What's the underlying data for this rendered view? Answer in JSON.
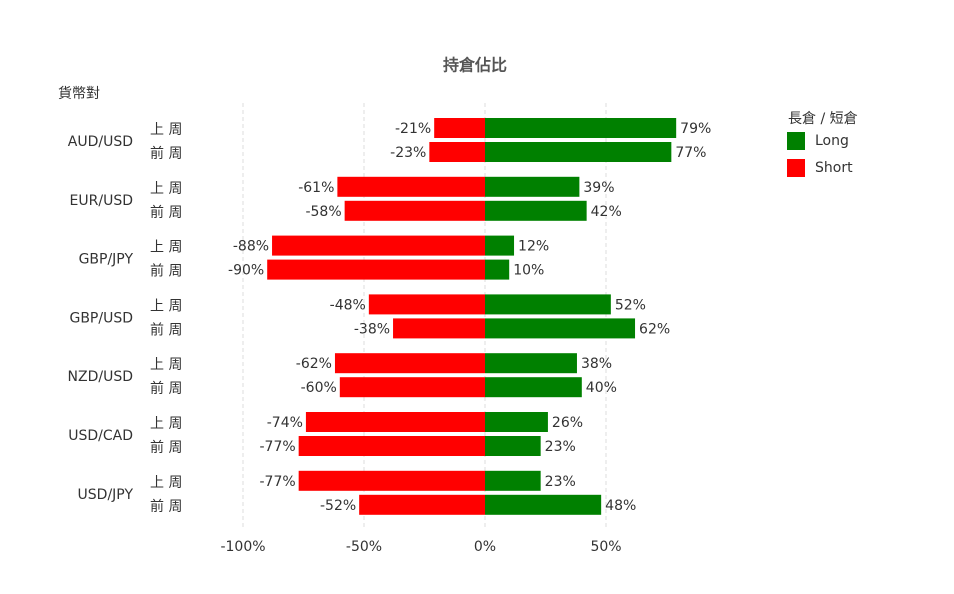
{
  "chart_data": {
    "type": "diverging-bar",
    "title": "持倉佔比",
    "y_label": "貨幣對",
    "legend_title": "長倉 / 短倉",
    "legend": "right",
    "categories": [
      "AUD/USD",
      "EUR/USD",
      "GBP/JPY",
      "GBP/USD",
      "NZD/USD",
      "USD/CAD",
      "USD/JPY"
    ],
    "periods": [
      "上 周",
      "前 周"
    ],
    "series": [
      {
        "name": "Long",
        "color": "#008000",
        "values": [
          [
            79,
            77
          ],
          [
            39,
            42
          ],
          [
            12,
            10
          ],
          [
            52,
            62
          ],
          [
            38,
            40
          ],
          [
            26,
            23
          ],
          [
            23,
            48
          ]
        ],
        "value_labels": [
          [
            "79%",
            "77%"
          ],
          [
            "39%",
            "42%"
          ],
          [
            "12%",
            "10%"
          ],
          [
            "52%",
            "62%"
          ],
          [
            "38%",
            "40%"
          ],
          [
            "26%",
            "23%"
          ],
          [
            "23%",
            "48%"
          ]
        ]
      },
      {
        "name": "Short",
        "color": "#ff0000",
        "values": [
          [
            -21,
            -23
          ],
          [
            -61,
            -58
          ],
          [
            -88,
            -90
          ],
          [
            -48,
            -38
          ],
          [
            -62,
            -60
          ],
          [
            -74,
            -77
          ],
          [
            -77,
            -52
          ]
        ],
        "value_labels": [
          [
            "-21%",
            "-23%"
          ],
          [
            "-61%",
            "-58%"
          ],
          [
            "-88%",
            "-90%"
          ],
          [
            "-48%",
            "-38%"
          ],
          [
            "-62%",
            "-60%"
          ],
          [
            "-74%",
            "-77%"
          ],
          [
            "-77%",
            "-52%"
          ]
        ]
      }
    ],
    "xlim": [
      -100,
      100
    ],
    "xticks": [
      {
        "value": -100,
        "label": "-100%"
      },
      {
        "value": -50,
        "label": "-50%"
      },
      {
        "value": 0,
        "label": "0%"
      },
      {
        "value": 50,
        "label": "50%"
      }
    ],
    "grid": true
  }
}
